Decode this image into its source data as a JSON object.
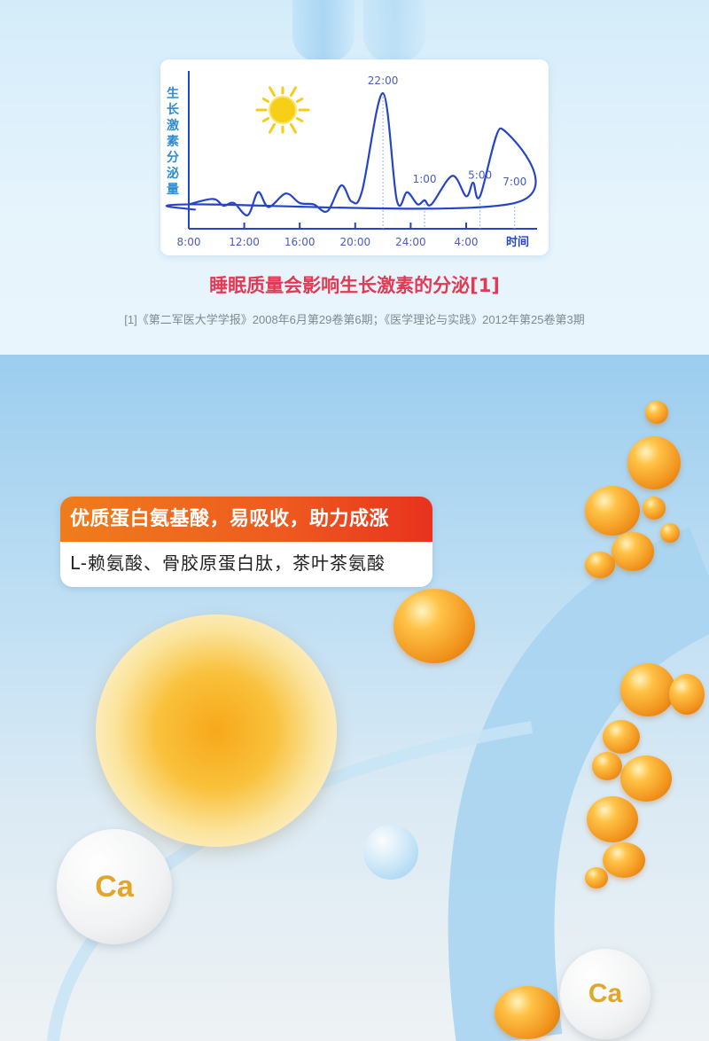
{
  "chart_data": {
    "type": "line",
    "ylabel": "生长激素分泌量",
    "xlabel": "时间",
    "x_tick_labels": [
      "8:00",
      "12:00",
      "16:00",
      "20:00",
      "24:00",
      "4:00"
    ],
    "series": [
      {
        "x": [
          "8:00",
          "9:45",
          "10:30",
          "11:15",
          "12:15",
          "13:00",
          "13:45",
          "15:00",
          "16:00",
          "17:00",
          "18:00",
          "19:00",
          "19:45",
          "20:30",
          "22:00",
          "23:00",
          "23:45",
          "0:30",
          "1:00",
          "1:30",
          "3:00",
          "4:00",
          "4:30",
          "5:00",
          "6:30",
          "7:30",
          "8:00",
          "8:30"
        ],
        "y": [
          18,
          22,
          17,
          19,
          10,
          27,
          16,
          26,
          19,
          18,
          13,
          32,
          20,
          28,
          100,
          21,
          27,
          18,
          21,
          18,
          39,
          24,
          34,
          24,
          74,
          19,
          18,
          14
        ]
      }
    ],
    "annotations": [
      {
        "label": "22:00",
        "x": "22:00"
      },
      {
        "label": "1:00",
        "x": "1:00"
      },
      {
        "label": "5:00",
        "x": "5:00"
      },
      {
        "label": "7:00",
        "x": "7:30"
      }
    ],
    "y_unit": "relative",
    "grid": false,
    "line_color": "#2544c8",
    "icons": [
      "sun-icon",
      "moon-icon"
    ]
  },
  "caption": "睡眠质量会影响生长激素的分泌[1]",
  "reference": "[1]《第二军医大学学报》2008年6月第29卷第6期；《医学理论与实践》2012年第25卷第3期",
  "banner": {
    "title": "优质蛋白氨基酸，易吸收，助力成涨",
    "subtitle": "L-赖氨酸、骨胶原蛋白肽，茶叶茶氨酸"
  },
  "calcium_label": "Ca",
  "colors": {
    "caption": "#e23a55",
    "banner_start": "#ef7d1c",
    "banner_end": "#e8321e",
    "chart_line": "#2544c8"
  }
}
